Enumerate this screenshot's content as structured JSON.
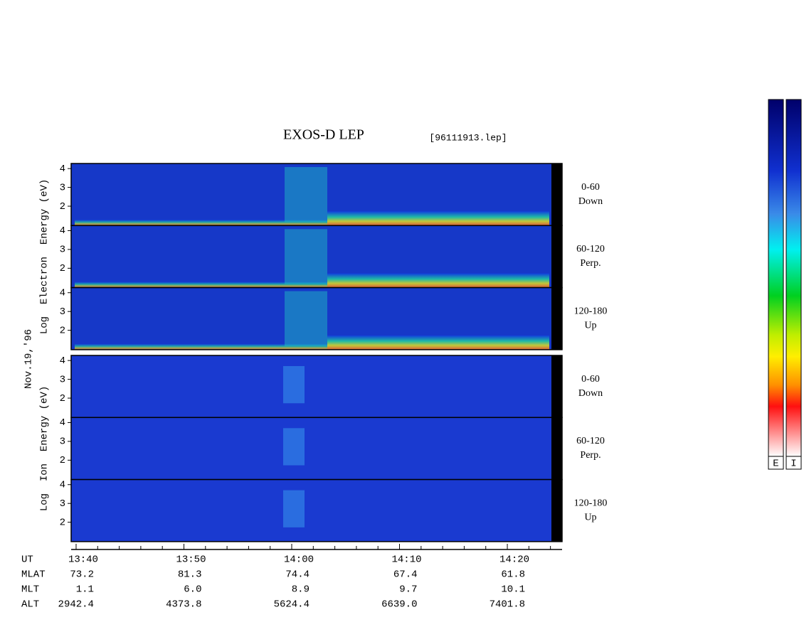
{
  "chart_data": {
    "type": "spectrogram",
    "title": "EXOS-D LEP",
    "file": "[96111913.lep]",
    "date": "Nov.19,'96",
    "xlim": [
      819.54,
      865.08
    ],
    "xticks": [
      {
        "value": 820,
        "label": "13:40"
      },
      {
        "value": 830,
        "label": "13:50"
      },
      {
        "value": 840,
        "label": "14:00"
      },
      {
        "value": 850,
        "label": "14:10"
      },
      {
        "value": 860,
        "label": "14:20"
      }
    ],
    "xticks_minor": [
      822,
      824,
      826,
      828,
      832,
      834,
      836,
      838,
      842,
      844,
      846,
      848,
      852,
      854,
      856,
      858,
      862,
      864
    ],
    "ylim": [
      0.97,
      4.27
    ],
    "yticks": [
      2,
      3,
      4
    ],
    "groups": [
      {
        "ylabel": "Log  Electron  Energy (eV)",
        "panels": [
          {
            "angle": "0-60",
            "direction": "Down"
          },
          {
            "angle": "60-120",
            "direction": "Perp."
          },
          {
            "angle": "120-180",
            "direction": "Up"
          }
        ]
      },
      {
        "ylabel": "Log  Ion  Energy (eV)",
        "panels": [
          {
            "angle": "0-60",
            "direction": "Down"
          },
          {
            "angle": "60-120",
            "direction": "Perp."
          },
          {
            "angle": "120-180",
            "direction": "Up"
          }
        ]
      }
    ],
    "ephemeris": {
      "UT": "UT",
      "rows": [
        {
          "name": "MLAT",
          "values": [
            "73.2",
            "81.3",
            "74.4",
            "67.4",
            "61.8"
          ]
        },
        {
          "name": "MLT",
          "values": [
            "1.1",
            "6.0",
            "8.9",
            "9.7",
            "10.1"
          ]
        },
        {
          "name": "ALT",
          "values": [
            "2942.4",
            "4373.8",
            "5624.4",
            "6639.0",
            "7401.8"
          ]
        }
      ]
    },
    "colorbars": [
      "E",
      "I"
    ]
  }
}
